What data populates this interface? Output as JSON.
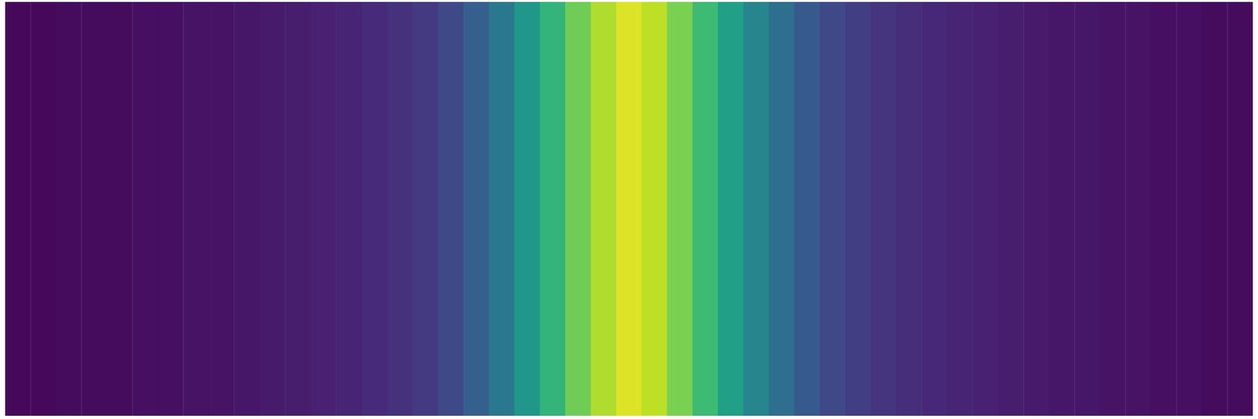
{
  "chart_data": {
    "type": "heatmap",
    "cells": [
      [
        0.02,
        0.02,
        0.03,
        0.03,
        0.03,
        0.04,
        0.04,
        0.05,
        0.05,
        0.06,
        0.07,
        0.08,
        0.09,
        0.1,
        0.12,
        0.14,
        0.17,
        0.22,
        0.3,
        0.4,
        0.52,
        0.65,
        0.78,
        0.88,
        0.95,
        0.9,
        0.8,
        0.68,
        0.56,
        0.45,
        0.36,
        0.28,
        0.22,
        0.18,
        0.15,
        0.13,
        0.11,
        0.1,
        0.09,
        0.08,
        0.07,
        0.06,
        0.06,
        0.05,
        0.05,
        0.04,
        0.04,
        0.03,
        0.03
      ]
    ],
    "color_range": [
      0,
      1
    ],
    "ylim": [
      0,
      1
    ],
    "tick_labels": false,
    "grid": false
  }
}
